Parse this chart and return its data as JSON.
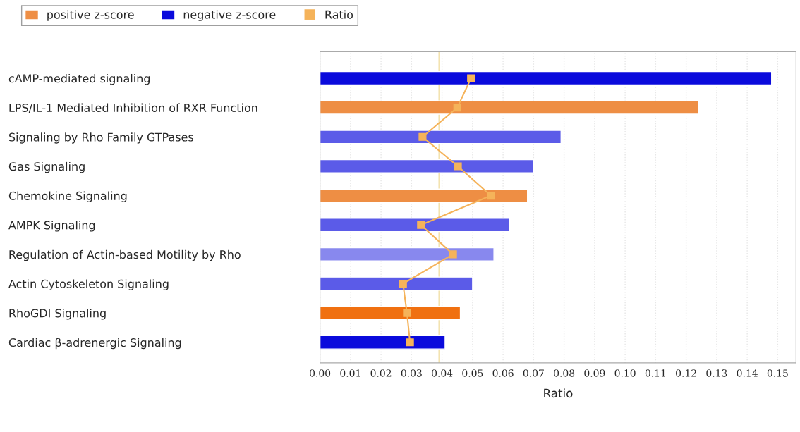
{
  "chart_data": {
    "type": "bar",
    "orientation": "horizontal",
    "xlabel": "Ratio",
    "categories": [
      "cAMP-mediated signaling",
      "LPS/IL-1 Mediated Inhibition of RXR Function",
      "Signaling by Rho Family GTPases",
      "Gas Signaling",
      "Chemokine Signaling",
      "AMPK Signaling",
      "Regulation of Actin-based Motility by Rho",
      "Actin Cytoskeleton Signaling",
      "RhoGDI Signaling",
      "Cardiac β-adrenergic Signaling"
    ],
    "series": [
      {
        "name": "positive z-score",
        "color": "#ee8e44",
        "colors": [
          null,
          "#ee8e44",
          null,
          null,
          "#ee8e44",
          null,
          null,
          null,
          "#f07010",
          null
        ],
        "values": [
          null,
          0.124,
          null,
          null,
          0.068,
          null,
          null,
          null,
          0.046,
          null
        ]
      },
      {
        "name": "negative z-score",
        "color": "#0a0adc",
        "colors": [
          "#0a0adc",
          null,
          "#5b5be8",
          "#5b5be8",
          null,
          "#5b5be8",
          "#8888ee",
          "#5b5be8",
          null,
          "#0a0adc"
        ],
        "values": [
          0.148,
          null,
          0.079,
          0.07,
          null,
          0.062,
          0.057,
          0.05,
          null,
          0.041
        ]
      },
      {
        "name": "Ratio",
        "type": "line",
        "color": "#f5b35a",
        "marker": "square",
        "values": [
          0.0495,
          0.045,
          0.0336,
          0.0452,
          0.056,
          0.0331,
          0.0436,
          0.0272,
          0.0285,
          0.0295
        ]
      }
    ],
    "xlim": [
      0,
      0.156
    ],
    "xticks": [
      {
        "value": 0,
        "label": "0.00"
      },
      0.01,
      0.02,
      0.03,
      0.04,
      0.05,
      0.06,
      0.07,
      0.08,
      0.09,
      {
        "value": 0.1,
        "label": "0.10"
      },
      0.11,
      0.12,
      0.13,
      0.14,
      0.15
    ],
    "ref_lines": [
      {
        "axis": "x",
        "value": 0.039,
        "color": "#f3e3b0"
      }
    ],
    "grid": "x",
    "legend": "top left"
  }
}
